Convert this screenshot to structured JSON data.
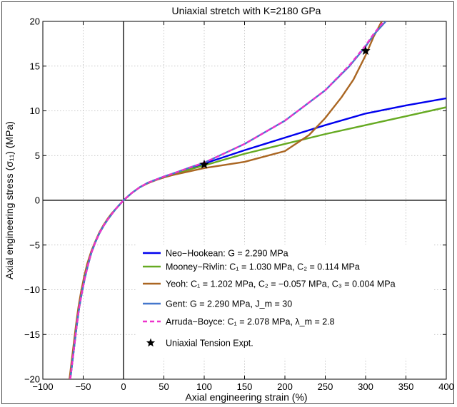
{
  "chart_data": {
    "type": "line",
    "title": "Uniaxial stretch with K=2180 GPa",
    "xlabel": "Axial engineering strain (%)",
    "ylabel": "Axial engineering stress (σ₁₁) (MPa)",
    "xlim": [
      -100,
      400
    ],
    "ylim": [
      -20,
      20
    ],
    "xticks": [
      -100,
      -50,
      0,
      50,
      100,
      150,
      200,
      250,
      300,
      350,
      400
    ],
    "yticks": [
      -20,
      -15,
      -10,
      -5,
      0,
      5,
      10,
      15,
      20
    ],
    "grid": true,
    "legend_position": "bottom-right",
    "series": [
      {
        "name": "Neo−Hookean: G = 2.290 MPa",
        "color": "#0000ee",
        "dash": "solid",
        "x": [
          -66,
          -62,
          -58,
          -55,
          -52,
          -48,
          -44,
          -40,
          -35,
          -30,
          -25,
          -20,
          -15,
          -10,
          -5,
          0,
          10,
          20,
          30,
          40,
          50,
          60,
          80,
          100,
          150,
          200,
          250,
          300,
          350,
          400
        ],
        "y": [
          -20,
          -17,
          -14,
          -12,
          -10.5,
          -8.7,
          -7.2,
          -5.9,
          -4.7,
          -3.7,
          -2.9,
          -2.2,
          -1.6,
          -1.0,
          -0.5,
          0,
          0.8,
          1.45,
          1.95,
          2.3,
          2.65,
          2.95,
          3.5,
          4.1,
          5.6,
          7.0,
          8.4,
          9.7,
          10.6,
          11.4
        ]
      },
      {
        "name": "Mooney−Rivlin: C₁ = 1.030 MPa, C₂ = 0.114 MPa",
        "color": "#66aa22",
        "dash": "solid",
        "x": [
          -66,
          -62,
          -58,
          -55,
          -52,
          -48,
          -44,
          -40,
          -35,
          -30,
          -25,
          -20,
          -15,
          -10,
          -5,
          0,
          10,
          20,
          30,
          40,
          50,
          60,
          80,
          100,
          150,
          200,
          250,
          300,
          350,
          400
        ],
        "y": [
          -20,
          -17,
          -14,
          -12,
          -10.5,
          -8.7,
          -7.2,
          -5.9,
          -4.7,
          -3.7,
          -2.9,
          -2.2,
          -1.6,
          -1.0,
          -0.5,
          0,
          0.8,
          1.45,
          1.95,
          2.3,
          2.6,
          2.9,
          3.4,
          3.9,
          5.2,
          6.3,
          7.4,
          8.4,
          9.4,
          10.4
        ]
      },
      {
        "name": "Yeoh: C₁ = 1.202 MPa, C₂ = −0.057 MPa, C₃ = 0.004 MPa",
        "color": "#aa6622",
        "dash": "solid",
        "x": [
          -67,
          -63,
          -59,
          -56,
          -53,
          -49,
          -45,
          -40,
          -35,
          -30,
          -25,
          -20,
          -15,
          -10,
          -5,
          0,
          10,
          20,
          30,
          40,
          50,
          60,
          80,
          100,
          150,
          200,
          230,
          250,
          270,
          285,
          300,
          310,
          320
        ],
        "y": [
          -20,
          -17,
          -14,
          -12,
          -10.4,
          -8.6,
          -7.1,
          -5.7,
          -4.6,
          -3.6,
          -2.8,
          -2.1,
          -1.5,
          -1.0,
          -0.5,
          0,
          0.8,
          1.45,
          1.9,
          2.25,
          2.55,
          2.8,
          3.2,
          3.6,
          4.3,
          5.5,
          7.3,
          9.2,
          11.5,
          13.5,
          16.2,
          18.3,
          20
        ]
      },
      {
        "name": "Gent: G = 2.290 MPa, J_m = 30",
        "color": "#4477cc",
        "dash": "solid",
        "x": [
          -66,
          -62,
          -58,
          -55,
          -52,
          -48,
          -44,
          -40,
          -35,
          -30,
          -25,
          -20,
          -15,
          -10,
          -5,
          0,
          10,
          20,
          30,
          40,
          50,
          60,
          80,
          100,
          150,
          200,
          250,
          280,
          300,
          310,
          320,
          325
        ],
        "y": [
          -20,
          -17,
          -14,
          -12,
          -10.5,
          -8.7,
          -7.2,
          -5.9,
          -4.7,
          -3.7,
          -2.9,
          -2.2,
          -1.6,
          -1.0,
          -0.5,
          0,
          0.8,
          1.45,
          1.95,
          2.3,
          2.65,
          2.95,
          3.6,
          4.2,
          6.3,
          8.9,
          12.3,
          15.0,
          17.2,
          18.5,
          19.5,
          20
        ]
      },
      {
        "name": "Arruda−Boyce: C₁ = 2.078 MPa, λ_m = 2.8",
        "color": "#ee33cc",
        "dash": "dashed",
        "x": [
          -66,
          -62,
          -58,
          -55,
          -52,
          -48,
          -44,
          -40,
          -35,
          -30,
          -25,
          -20,
          -15,
          -10,
          -5,
          0,
          10,
          20,
          30,
          40,
          50,
          60,
          80,
          100,
          150,
          200,
          250,
          280,
          300,
          310,
          320,
          325
        ],
        "y": [
          -20,
          -17,
          -14,
          -12,
          -10.5,
          -8.7,
          -7.2,
          -5.9,
          -4.7,
          -3.7,
          -2.9,
          -2.2,
          -1.6,
          -1.0,
          -0.5,
          0,
          0.8,
          1.45,
          1.95,
          2.3,
          2.65,
          2.95,
          3.6,
          4.2,
          6.3,
          8.9,
          12.3,
          15.1,
          17.3,
          18.6,
          19.7,
          20
        ]
      },
      {
        "name": "Uniaxial Tension Expt.",
        "color": "#000000",
        "marker": "star",
        "x": [
          100,
          300
        ],
        "y": [
          4.0,
          16.7
        ]
      }
    ]
  }
}
